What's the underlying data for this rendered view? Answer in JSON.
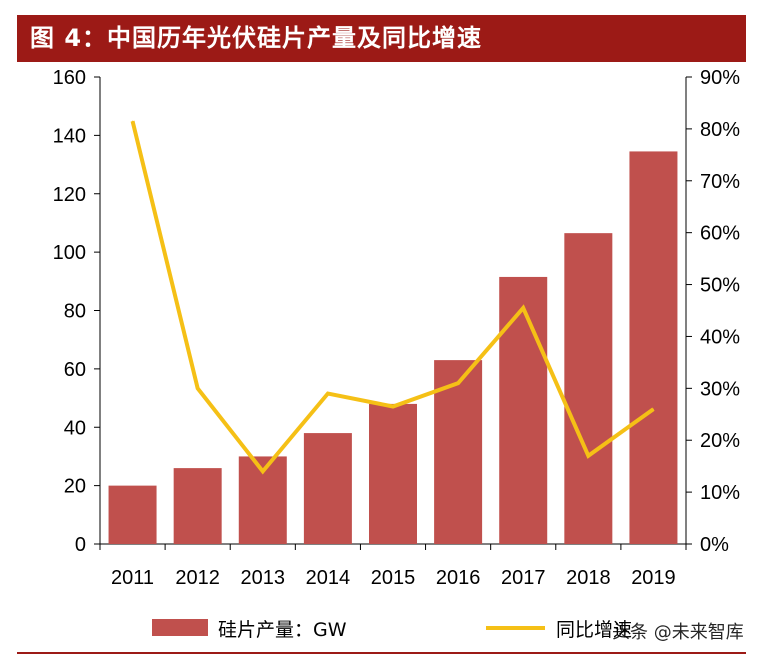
{
  "header": {
    "title": "图 4：中国历年光伏硅片产量及同比增速"
  },
  "watermark": "头条 @未来智库",
  "colors": {
    "title_bg": "#9c1a16",
    "bar": "#c0504d",
    "line": "#f5c016",
    "rule": "#9c1a16"
  },
  "chart_data": {
    "type": "bar",
    "categories": [
      "2011",
      "2012",
      "2013",
      "2014",
      "2015",
      "2016",
      "2017",
      "2018",
      "2019"
    ],
    "series": [
      {
        "name": "硅片产量：GW",
        "type": "bar",
        "axis": "left",
        "values": [
          20,
          26,
          30,
          38,
          48,
          63,
          91.5,
          106.5,
          134.5
        ]
      },
      {
        "name": "同比增速",
        "type": "line",
        "axis": "right",
        "values": [
          0.815,
          0.3,
          0.14,
          0.29,
          0.265,
          0.31,
          0.455,
          0.17,
          0.26
        ]
      }
    ],
    "ylim_left": [
      0,
      160
    ],
    "yticks_left": [
      "0",
      "20",
      "40",
      "60",
      "80",
      "100",
      "120",
      "140",
      "160"
    ],
    "ylim_right": [
      0,
      0.9
    ],
    "yticks_right": [
      "0%",
      "10%",
      "20%",
      "30%",
      "40%",
      "50%",
      "60%",
      "70%",
      "80%",
      "90%"
    ],
    "grid": false,
    "legend": "bottom"
  }
}
